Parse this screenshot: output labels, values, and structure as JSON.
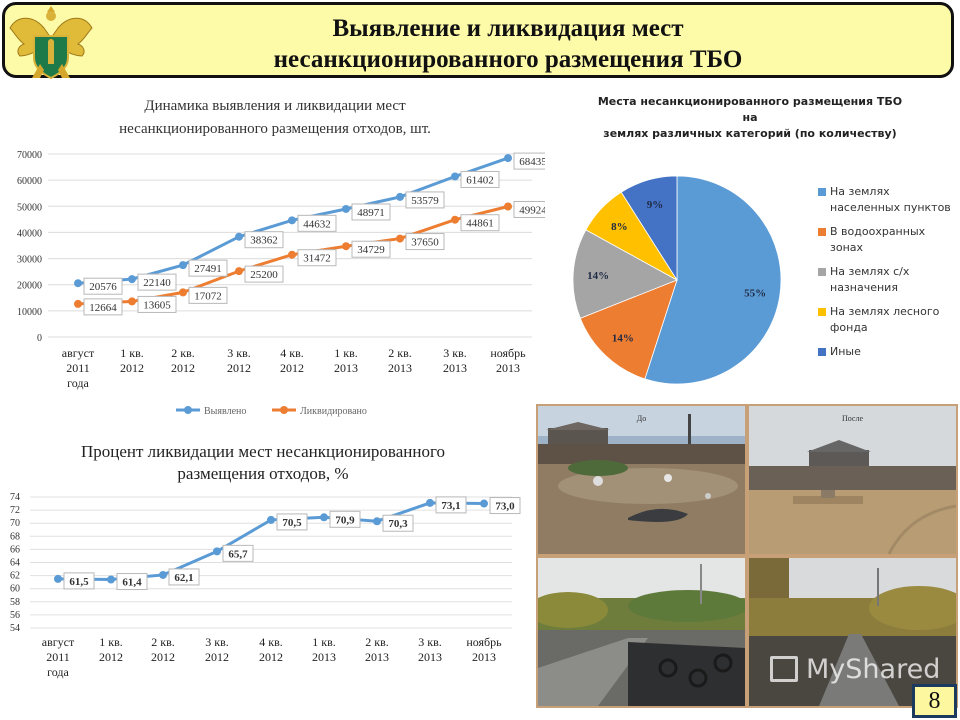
{
  "header": {
    "title_line1": "Выявление и ликвидация мест",
    "title_line2": "несанкционированного размещения ТБО",
    "emblem_icon": "double-headed-eagle-emblem-icon"
  },
  "chart_data": [
    {
      "type": "line",
      "title": "Динамика выявления и ликвидации мест несанкционированного размещения отходов, шт.",
      "title_line1": "Динамика выявления и ликвидации мест",
      "title_line2": "несанкционированного размещения отходов, шт.",
      "xlabel": "",
      "ylabel": "",
      "ylim": [
        0,
        70000
      ],
      "yticks": [
        "70000",
        "60000",
        "50000",
        "40000",
        "30000",
        "20000",
        "10000",
        "0"
      ],
      "grid": true,
      "legend_position": "bottom",
      "categories": [
        [
          "август",
          "2011",
          "года"
        ],
        [
          "1 кв.",
          "2012"
        ],
        [
          "2 кв.",
          "2012"
        ],
        [
          "3 кв.",
          "2012"
        ],
        [
          "4 кв.",
          "2012"
        ],
        [
          "1 кв.",
          "2013"
        ],
        [
          "2 кв.",
          "2013"
        ],
        [
          "3 кв.",
          "2013"
        ],
        [
          "ноябрь",
          "2013"
        ]
      ],
      "series": [
        {
          "name": "Выявлено",
          "color": "#5b9bd5",
          "values": [
            20576,
            22140,
            27491,
            38362,
            44632,
            48971,
            53579,
            61402,
            68435
          ]
        },
        {
          "name": "Ликвидировано",
          "color": "#ed7d31",
          "values": [
            12664,
            13605,
            17072,
            25200,
            31472,
            34729,
            37650,
            44861,
            49924
          ]
        }
      ]
    },
    {
      "type": "pie",
      "title": "Места несанкционированного размещения ТБО на землях различных категорий (по количеству)",
      "title_line1": "Места несанкционированного размещения ТБО на",
      "title_line2": "землях различных категорий (по количеству)",
      "legend_position": "right",
      "slices": [
        {
          "label": "На землях населенных пунктов",
          "value": 55,
          "display": "55%",
          "color": "#5b9bd5"
        },
        {
          "label": "В водоохранных зонах",
          "value": 14,
          "display": "14%",
          "color": "#ed7d31"
        },
        {
          "label": "На землях с/х назначения",
          "value": 14,
          "display": "14%",
          "color": "#a5a5a5"
        },
        {
          "label": "На землях лесного фонда",
          "value": 8,
          "display": "8%",
          "color": "#ffc000"
        },
        {
          "label": "Иные",
          "value": 9,
          "display": "9%",
          "color": "#4472c4"
        }
      ],
      "legend_lines": [
        [
          "На землях",
          "населенных пунктов"
        ],
        [
          "В водоохранных",
          "зонах"
        ],
        [
          "На землях с/х",
          "назначения"
        ],
        [
          "На землях лесного",
          "фонда"
        ],
        [
          "Иные"
        ]
      ]
    },
    {
      "type": "line",
      "title": "Процент ликвидации мест несанкционированного размещения отходов, %",
      "title_line1": "Процент ликвидации мест несанкционированного",
      "title_line2": "размещения отходов, %",
      "xlabel": "",
      "ylabel": "",
      "ylim": [
        54,
        74
      ],
      "yticks": [
        "74",
        "72",
        "70",
        "68",
        "66",
        "64",
        "62",
        "60",
        "58",
        "56",
        "54"
      ],
      "grid": true,
      "categories": [
        [
          "август",
          "2011",
          "года"
        ],
        [
          "1 кв.",
          "2012"
        ],
        [
          "2 кв.",
          "2012"
        ],
        [
          "3 кв.",
          "2012"
        ],
        [
          "4 кв.",
          "2012"
        ],
        [
          "1 кв.",
          "2013"
        ],
        [
          "2 кв.",
          "2013"
        ],
        [
          "3 кв.",
          "2013"
        ],
        [
          "ноябрь",
          "2013"
        ]
      ],
      "series": [
        {
          "name": "Процент ликвидации",
          "color": "#5b9bd5",
          "values": [
            61.5,
            61.4,
            62.1,
            65.7,
            70.5,
            70.9,
            70.3,
            73.1,
            73.0
          ],
          "labels": [
            "61,5",
            "61,4",
            "62,1",
            "65,7",
            "70,5",
            "70,9",
            "70,3",
            "73,1",
            "73,0"
          ]
        }
      ]
    }
  ],
  "photos": {
    "items": [
      {
        "label": "До",
        "scene": "dump-before"
      },
      {
        "label": "После",
        "scene": "cleared-after"
      },
      {
        "label": "",
        "scene": "tires-road-before"
      },
      {
        "label": "",
        "scene": "clean-road-after"
      }
    ]
  },
  "watermark": {
    "text": "MyShared",
    "icon": "presentation-board-icon"
  },
  "page_number": "8"
}
